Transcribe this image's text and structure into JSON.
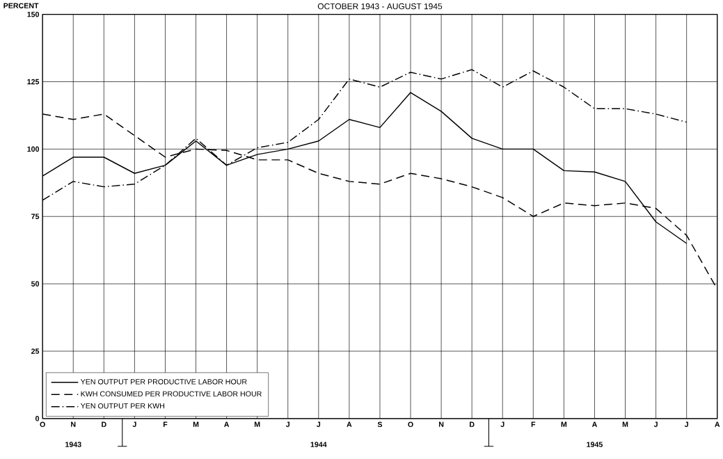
{
  "chart_data": {
    "type": "line",
    "title": "OCTOBER 1943 - AUGUST 1945",
    "ylabel": "PERCENT",
    "categories": [
      "O",
      "N",
      "D",
      "J",
      "F",
      "M",
      "A",
      "M",
      "J",
      "J",
      "A",
      "S",
      "O",
      "N",
      "D",
      "J",
      "F",
      "M",
      "A",
      "M",
      "J",
      "J",
      "A"
    ],
    "series": [
      {
        "name": "YEN OUTPUT PER PRODUCTIVE LABOR HOUR",
        "color": "#000000",
        "line_style": "solid",
        "values": [
          90,
          97,
          97,
          91,
          94,
          103,
          94,
          98,
          100,
          103,
          111,
          108,
          121,
          114,
          104,
          100,
          100,
          92,
          91.5,
          88,
          73,
          65,
          null
        ]
      },
      {
        "name": "KWH CONSUMED PER PRODUCTIVE LABOR HOUR",
        "color": "#000000",
        "line_style": "dashed",
        "values": [
          113,
          111,
          113,
          105,
          97,
          100,
          99.5,
          96,
          96,
          91,
          88,
          87,
          91,
          89,
          86,
          82,
          75,
          80,
          79,
          80,
          78,
          68,
          48
        ]
      },
      {
        "name": "YEN OUTPUT PER KWH",
        "color": "#000000",
        "line_style": "dashdot",
        "values": [
          81,
          88,
          86,
          87,
          94,
          104,
          94,
          100.5,
          102.5,
          111,
          126,
          123,
          128.5,
          126,
          129.5,
          123,
          129,
          123,
          115,
          115,
          113,
          110,
          null
        ]
      }
    ],
    "ylim": [
      0,
      150
    ],
    "yticks": [
      0,
      25,
      50,
      75,
      100,
      125,
      150
    ],
    "grid": true,
    "legend": "bottom left",
    "marker": "none",
    "annotations": [
      "1943",
      "1944",
      "1945"
    ]
  }
}
